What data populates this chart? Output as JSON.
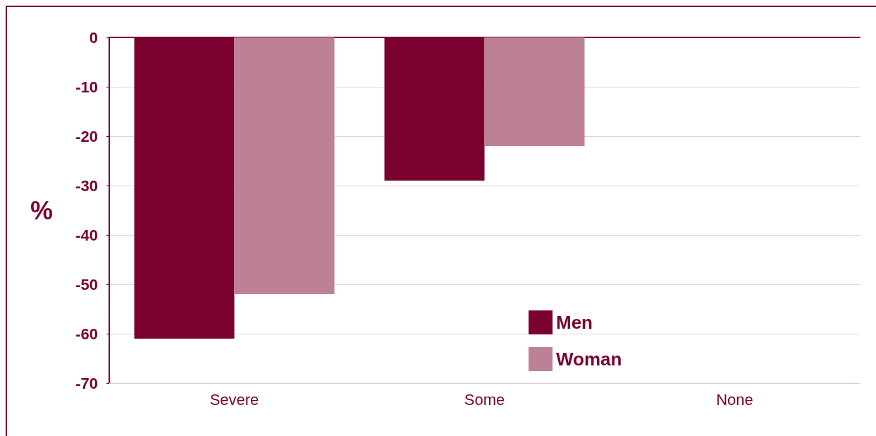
{
  "chart_data": {
    "type": "bar",
    "ylabel": "%",
    "categories": [
      "Severe",
      "Some",
      "None"
    ],
    "series": [
      {
        "name": "Men",
        "color": "#7a0030",
        "values": [
          -61,
          -29,
          0
        ]
      },
      {
        "name": "Woman",
        "color": "#bd8197",
        "values": [
          -52,
          -22,
          0
        ]
      }
    ],
    "ylim": [
      -70,
      0
    ],
    "yticks": [
      -70,
      -60,
      -50,
      -40,
      -30,
      -20,
      -10,
      0
    ],
    "grid": "y",
    "legend": "bottom"
  }
}
